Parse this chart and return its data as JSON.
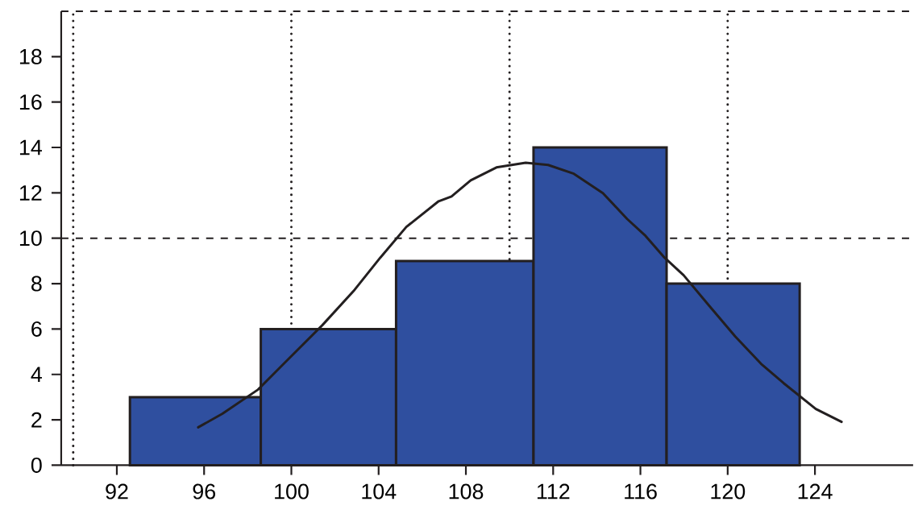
{
  "chart_data": {
    "type": "histogram",
    "xlim": [
      89.45,
      128.5
    ],
    "ylim": [
      0,
      20
    ],
    "xticks": [
      92,
      96,
      100,
      104,
      108,
      112,
      116,
      120,
      124
    ],
    "yticks": [
      0,
      2,
      4,
      6,
      8,
      10,
      12,
      14,
      16,
      18
    ],
    "series": [
      {
        "color": "#2f4f9f",
        "bins": [
          92.6,
          98.6,
          104.8,
          111.1,
          117.2,
          123.3
        ],
        "values": [
          3,
          6,
          9,
          14,
          8
        ]
      },
      {
        "type": "line",
        "color": "#231f20",
        "x": [
          95.73,
          96.84,
          98.47,
          99.65,
          101.42,
          102.9,
          104.08,
          105.27,
          106.75,
          107.34,
          108.22,
          109.4,
          110.74,
          111.77,
          112.95,
          114.28,
          115.39,
          116.2,
          117.1,
          117.98,
          119.16,
          120.35,
          121.53,
          122.56,
          124.04,
          125.22
        ],
        "values": [
          1.67,
          2.27,
          3.33,
          4.47,
          6.17,
          7.73,
          9.15,
          10.5,
          11.63,
          11.84,
          12.55,
          13.12,
          13.33,
          13.23,
          12.84,
          11.99,
          10.85,
          10.14,
          9.15,
          8.37,
          7.02,
          5.67,
          4.47,
          3.62,
          2.48,
          1.91
        ]
      }
    ],
    "ref_lines": [
      {
        "axis": "x",
        "value": 90,
        "line_style": "dotted",
        "color": "#231f20"
      },
      {
        "axis": "x",
        "value": 100,
        "line_style": "dotted",
        "color": "#231f20"
      },
      {
        "axis": "x",
        "value": 110,
        "line_style": "dotted",
        "color": "#231f20"
      },
      {
        "axis": "x",
        "value": 120,
        "line_style": "dotted",
        "color": "#231f20"
      },
      {
        "axis": "y",
        "value": 10,
        "line_style": "dashed",
        "color": "#231f20"
      },
      {
        "axis": "y",
        "value": 20,
        "line_style": "dashed",
        "color": "#231f20"
      }
    ]
  }
}
